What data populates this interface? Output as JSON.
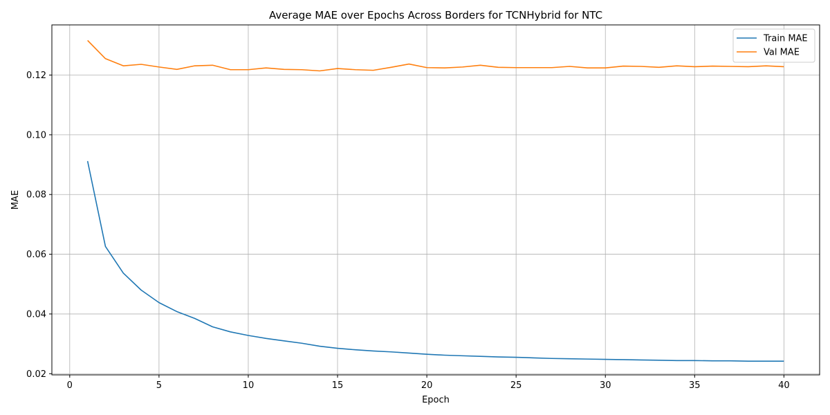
{
  "chart_data": {
    "type": "line",
    "title": "Average MAE over Epochs Across Borders for TCNHybrid for NTC",
    "xlabel": "Epoch",
    "ylabel": "MAE",
    "xlim": [
      -1.0,
      42.0
    ],
    "ylim": [
      0.0196,
      0.1368
    ],
    "xticks": [
      0,
      5,
      10,
      15,
      20,
      25,
      30,
      35,
      40
    ],
    "yticks": [
      0.02,
      0.04,
      0.06,
      0.08,
      0.1,
      0.12
    ],
    "ytick_labels": [
      "0.02",
      "0.04",
      "0.06",
      "0.08",
      "0.10",
      "0.12"
    ],
    "grid": true,
    "legend_position": "top-right",
    "x": [
      1,
      2,
      3,
      4,
      5,
      6,
      7,
      8,
      9,
      10,
      11,
      12,
      13,
      14,
      15,
      16,
      17,
      18,
      19,
      20,
      21,
      22,
      23,
      24,
      25,
      26,
      27,
      28,
      29,
      30,
      31,
      32,
      33,
      34,
      35,
      36,
      37,
      38,
      39,
      40
    ],
    "series": [
      {
        "name": "Train MAE",
        "color": "#1f77b4",
        "values": [
          0.0912,
          0.0626,
          0.0537,
          0.048,
          0.0438,
          0.0408,
          0.0385,
          0.0357,
          0.034,
          0.0328,
          0.0318,
          0.031,
          0.0302,
          0.0292,
          0.0285,
          0.028,
          0.0276,
          0.0273,
          0.0269,
          0.0265,
          0.0262,
          0.026,
          0.0258,
          0.0256,
          0.0255,
          0.0253,
          0.0251,
          0.025,
          0.0249,
          0.0248,
          0.0247,
          0.0246,
          0.0245,
          0.0244,
          0.0244,
          0.0243,
          0.0243,
          0.0242,
          0.0242,
          0.0242
        ]
      },
      {
        "name": "Val MAE",
        "color": "#ff7f0e",
        "values": [
          0.1316,
          0.1255,
          0.1231,
          0.1236,
          0.1227,
          0.1219,
          0.1231,
          0.1233,
          0.1218,
          0.1218,
          0.1224,
          0.1219,
          0.1218,
          0.1214,
          0.1222,
          0.1218,
          0.1216,
          0.1226,
          0.1237,
          0.1225,
          0.1224,
          0.1227,
          0.1233,
          0.1226,
          0.1225,
          0.1225,
          0.1225,
          0.1229,
          0.1224,
          0.1224,
          0.123,
          0.1229,
          0.1226,
          0.1231,
          0.1228,
          0.123,
          0.1229,
          0.1228,
          0.1231,
          0.1228
        ]
      }
    ]
  }
}
